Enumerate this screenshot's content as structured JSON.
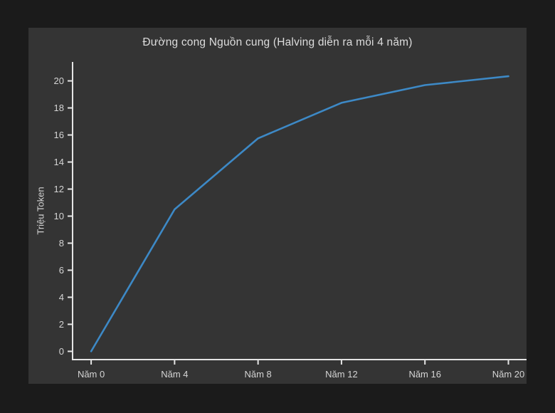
{
  "page": {
    "background_color": "#1b1b1b",
    "panel_color": "#343434"
  },
  "chart_data": {
    "type": "line",
    "title": "Đường cong Nguồn cung (Halving diễn ra mỗi 4 năm)",
    "xlabel": "",
    "ylabel": "Triệu Token",
    "x": [
      0,
      4,
      8,
      12,
      16,
      20
    ],
    "x_tick_labels": [
      "Năm 0",
      "Năm 4",
      "Năm 8",
      "Năm 12",
      "Năm 16",
      "Năm 20"
    ],
    "values": [
      0,
      10.5,
      15.75,
      18.375,
      19.6875,
      20.3438
    ],
    "y_ticks": [
      0,
      2,
      4,
      6,
      8,
      10,
      12,
      14,
      16,
      18,
      20
    ],
    "xlim": [
      -0.89,
      20.87
    ],
    "ylim": [
      -0.61,
      21.4
    ],
    "grid": false,
    "legend": "none",
    "line_color": "#3d89c6",
    "axis_color": "#e4e4e4",
    "tick_text_color": "#d4d4d4",
    "title_color": "#dcdcdc"
  }
}
